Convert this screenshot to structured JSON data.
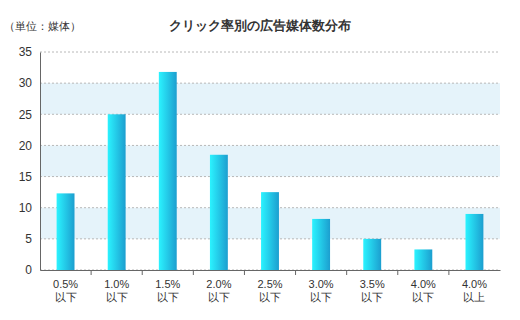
{
  "chart_data": {
    "type": "bar",
    "title": "クリック率別の広告媒体数分布",
    "y_label": "（単位：媒体）",
    "categories": [
      "0.5%\n以下",
      "1.0%\n以下",
      "1.5%\n以下",
      "2.0%\n以下",
      "2.5%\n以下",
      "3.0%\n以下",
      "3.5%\n以下",
      "4.0%\n以下",
      "4.0%\n以上"
    ],
    "values": [
      12.3,
      25,
      31.8,
      18.5,
      12.5,
      8.2,
      5,
      3.3,
      9
    ],
    "color": "#1fb0e6",
    "ylim": [
      0,
      35
    ],
    "yticks": [
      0,
      5,
      10,
      15,
      20,
      25,
      30,
      35
    ],
    "grid": true
  }
}
